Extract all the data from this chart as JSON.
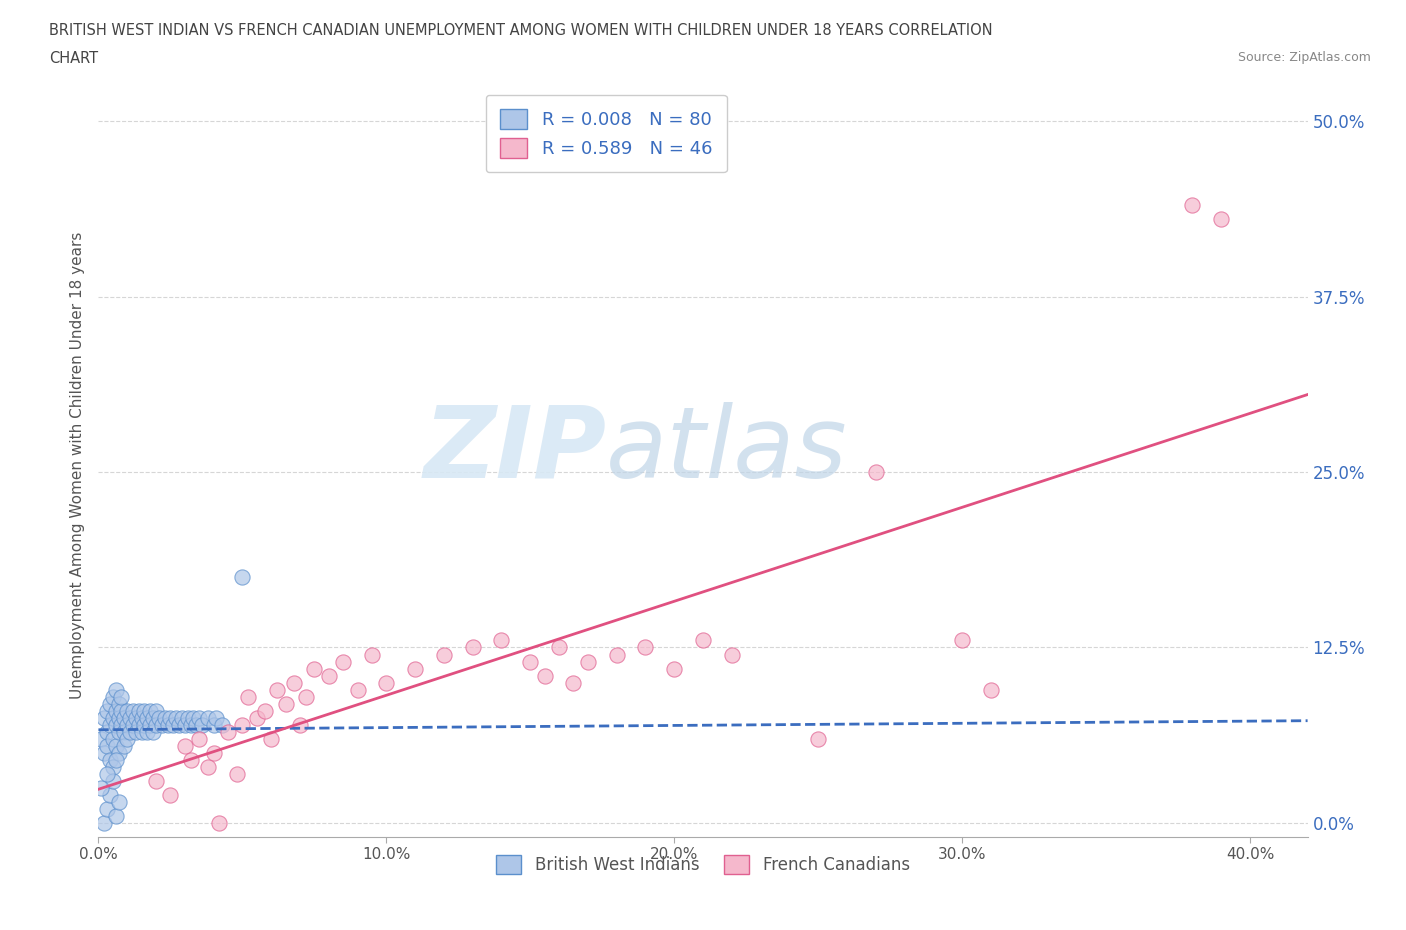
{
  "title_line1": "BRITISH WEST INDIAN VS FRENCH CANADIAN UNEMPLOYMENT AMONG WOMEN WITH CHILDREN UNDER 18 YEARS CORRELATION",
  "title_line2": "CHART",
  "source": "Source: ZipAtlas.com",
  "ylabel": "Unemployment Among Women with Children Under 18 years",
  "xlabel_ticks": [
    "0.0%",
    "10.0%",
    "20.0%",
    "30.0%",
    "40.0%"
  ],
  "xlabel_vals": [
    0.0,
    0.1,
    0.2,
    0.3,
    0.4
  ],
  "ylabel_ticks": [
    "0.0%",
    "12.5%",
    "25.0%",
    "37.5%",
    "50.0%"
  ],
  "ylabel_vals": [
    0.0,
    0.125,
    0.25,
    0.375,
    0.5
  ],
  "xlim": [
    0.0,
    0.42
  ],
  "ylim": [
    -0.01,
    0.52
  ],
  "legend_R_blue": "0.008",
  "legend_N_blue": "80",
  "legend_R_pink": "0.589",
  "legend_N_pink": "46",
  "blue_dot_color": "#AEC6E8",
  "blue_dot_edge": "#5B8FCC",
  "blue_line_color": "#3B6DBF",
  "pink_dot_color": "#F5B8CC",
  "pink_dot_edge": "#E06090",
  "pink_line_color": "#E05080",
  "grid_color": "#BBBBBB",
  "background_color": "#FFFFFF",
  "blue_scatter_x": [
    0.001,
    0.002,
    0.002,
    0.003,
    0.003,
    0.003,
    0.004,
    0.004,
    0.004,
    0.005,
    0.005,
    0.005,
    0.005,
    0.006,
    0.006,
    0.006,
    0.006,
    0.007,
    0.007,
    0.007,
    0.007,
    0.008,
    0.008,
    0.008,
    0.009,
    0.009,
    0.009,
    0.01,
    0.01,
    0.01,
    0.011,
    0.011,
    0.012,
    0.012,
    0.013,
    0.013,
    0.014,
    0.014,
    0.015,
    0.015,
    0.016,
    0.016,
    0.017,
    0.017,
    0.018,
    0.018,
    0.019,
    0.019,
    0.02,
    0.02,
    0.021,
    0.022,
    0.023,
    0.024,
    0.025,
    0.026,
    0.027,
    0.028,
    0.029,
    0.03,
    0.031,
    0.032,
    0.033,
    0.034,
    0.035,
    0.036,
    0.038,
    0.04,
    0.041,
    0.043,
    0.002,
    0.003,
    0.004,
    0.005,
    0.006,
    0.007,
    0.05,
    0.001,
    0.003,
    0.006
  ],
  "blue_scatter_y": [
    0.06,
    0.05,
    0.075,
    0.065,
    0.08,
    0.055,
    0.07,
    0.085,
    0.045,
    0.075,
    0.09,
    0.06,
    0.04,
    0.08,
    0.07,
    0.095,
    0.055,
    0.085,
    0.075,
    0.065,
    0.05,
    0.08,
    0.07,
    0.09,
    0.075,
    0.065,
    0.055,
    0.08,
    0.07,
    0.06,
    0.075,
    0.065,
    0.08,
    0.07,
    0.075,
    0.065,
    0.08,
    0.07,
    0.075,
    0.065,
    0.08,
    0.07,
    0.075,
    0.065,
    0.08,
    0.07,
    0.075,
    0.065,
    0.08,
    0.07,
    0.075,
    0.07,
    0.075,
    0.07,
    0.075,
    0.07,
    0.075,
    0.07,
    0.075,
    0.07,
    0.075,
    0.07,
    0.075,
    0.07,
    0.075,
    0.07,
    0.075,
    0.07,
    0.075,
    0.07,
    0.0,
    0.01,
    0.02,
    0.03,
    0.005,
    0.015,
    0.175,
    0.025,
    0.035,
    0.045
  ],
  "pink_scatter_x": [
    0.02,
    0.025,
    0.03,
    0.032,
    0.035,
    0.038,
    0.04,
    0.042,
    0.045,
    0.048,
    0.05,
    0.052,
    0.055,
    0.058,
    0.06,
    0.062,
    0.065,
    0.068,
    0.07,
    0.072,
    0.075,
    0.08,
    0.085,
    0.09,
    0.095,
    0.1,
    0.11,
    0.12,
    0.13,
    0.14,
    0.15,
    0.155,
    0.16,
    0.165,
    0.17,
    0.18,
    0.19,
    0.2,
    0.21,
    0.22,
    0.25,
    0.27,
    0.3,
    0.31,
    0.38,
    0.39
  ],
  "pink_scatter_y": [
    0.03,
    0.02,
    0.055,
    0.045,
    0.06,
    0.04,
    0.05,
    0.0,
    0.065,
    0.035,
    0.07,
    0.09,
    0.075,
    0.08,
    0.06,
    0.095,
    0.085,
    0.1,
    0.07,
    0.09,
    0.11,
    0.105,
    0.115,
    0.095,
    0.12,
    0.1,
    0.11,
    0.12,
    0.125,
    0.13,
    0.115,
    0.105,
    0.125,
    0.1,
    0.115,
    0.12,
    0.125,
    0.11,
    0.13,
    0.12,
    0.06,
    0.25,
    0.13,
    0.095,
    0.44,
    0.43
  ]
}
